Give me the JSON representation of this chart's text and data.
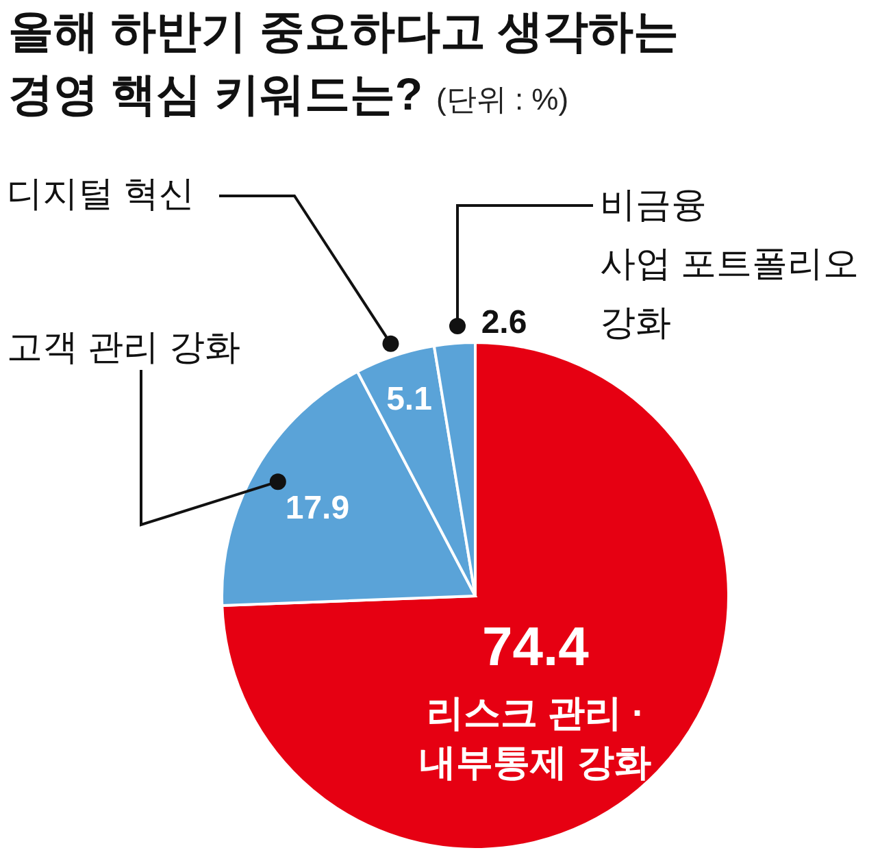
{
  "chart_data": {
    "type": "pie",
    "title": "올해 하반기 중요하다고 생각하는\n경영 핵심 키워드는?",
    "subtitle": "(단위 : %)",
    "categories": [
      "리스크 관리 ·\n내부통제 강화",
      "고객 관리 강화",
      "디지털 혁신",
      "비금융\n사업 포트폴리오\n강화"
    ],
    "values": [
      74.4,
      17.9,
      5.1,
      2.6
    ],
    "colors": [
      "#e60012",
      "#5aa3d8",
      "#5aa3d8",
      "#5aa3d8"
    ],
    "data_labels": true
  }
}
